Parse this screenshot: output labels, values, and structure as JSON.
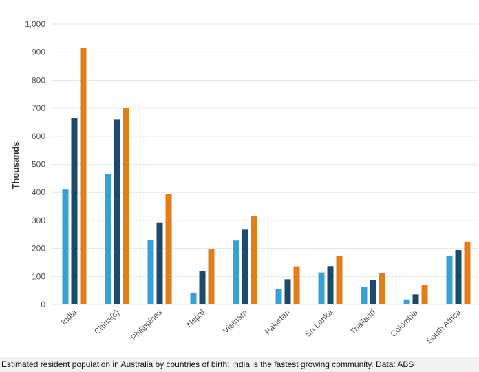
{
  "chart_data": {
    "type": "bar",
    "y_label": "Thousands",
    "caption": "Estimated resident population in Australia by countries of birth: India is the fastest growing community. Data: ABS",
    "categories": [
      "India",
      "China(c)",
      "Philippines",
      "Nepal",
      "Vietnam",
      "Pakistan",
      "Sri Lanka",
      "Thailand",
      "Colombia",
      "South Africa"
    ],
    "series": [
      {
        "color": "#3a9fd6",
        "values": [
          410,
          465,
          230,
          42,
          228,
          54,
          114,
          62,
          18,
          174
        ]
      },
      {
        "color": "#1b4a6d",
        "values": [
          665,
          660,
          293,
          119,
          267,
          90,
          137,
          87,
          36,
          194
        ]
      },
      {
        "color": "#e07f1a",
        "values": [
          915,
          700,
          394,
          198,
          317,
          136,
          172,
          112,
          71,
          224
        ]
      }
    ],
    "ylim": [
      0,
      1000
    ],
    "yticks": [
      0,
      100,
      200,
      300,
      400,
      500,
      600,
      700,
      800,
      900,
      {
        "value": 1000,
        "label": "1,000"
      }
    ],
    "grid": true
  }
}
